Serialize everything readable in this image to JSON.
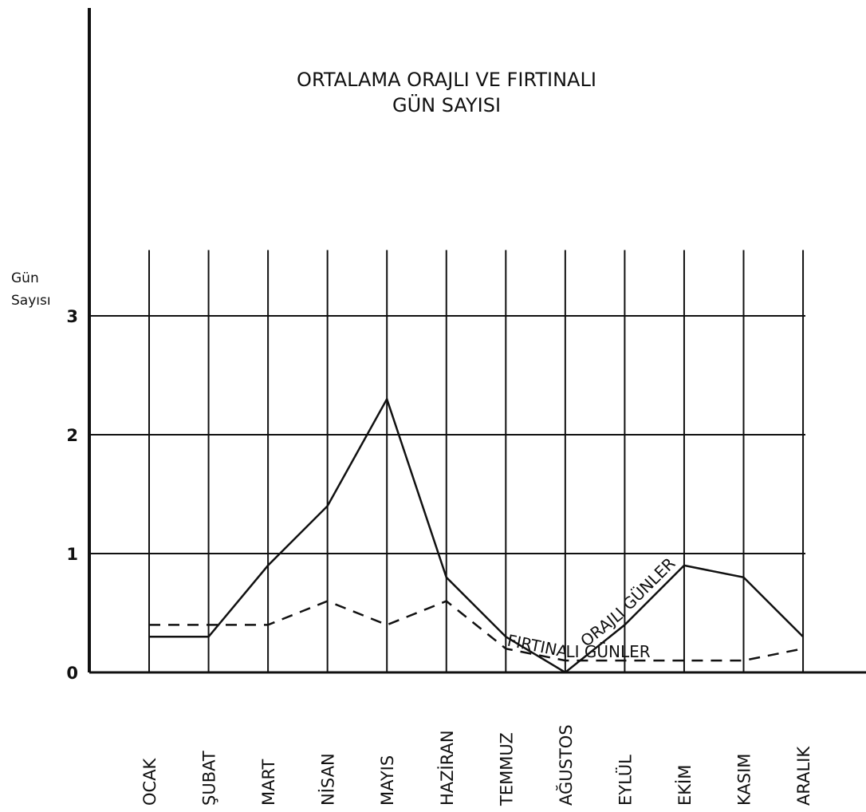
{
  "chart_data": {
    "type": "line",
    "title": [
      "ORTALAMA  ORAJLI  VE  FIRTINALI",
      "GÜN  SAYISI"
    ],
    "ylabel": [
      "Gün",
      "Sayısı"
    ],
    "categories": [
      "OCAK",
      "ŞUBAT",
      "MART",
      "NİSAN",
      "MAYIS",
      "HAZİRAN",
      "TEMMUZ",
      "AĞUSTOS",
      "EYLÜL",
      "EKİM",
      "KASIM",
      "ARALIK"
    ],
    "series": [
      {
        "name": "ORAJLI GÜNLER",
        "color": "#111111",
        "dash": false,
        "values": [
          0.3,
          0.3,
          0.9,
          1.4,
          2.3,
          0.8,
          0.3,
          0.0,
          0.4,
          0.9,
          0.8,
          0.3
        ]
      },
      {
        "name": "FIRTINALI GÜNLER",
        "color": "#111111",
        "dash": true,
        "values": [
          0.4,
          0.4,
          0.4,
          0.6,
          0.4,
          0.6,
          0.2,
          0.1,
          0.1,
          0.1,
          0.1,
          0.2
        ]
      }
    ],
    "ylim": [
      0,
      3.5
    ],
    "yticks": [
      0,
      1,
      2,
      3
    ],
    "grid": true
  }
}
